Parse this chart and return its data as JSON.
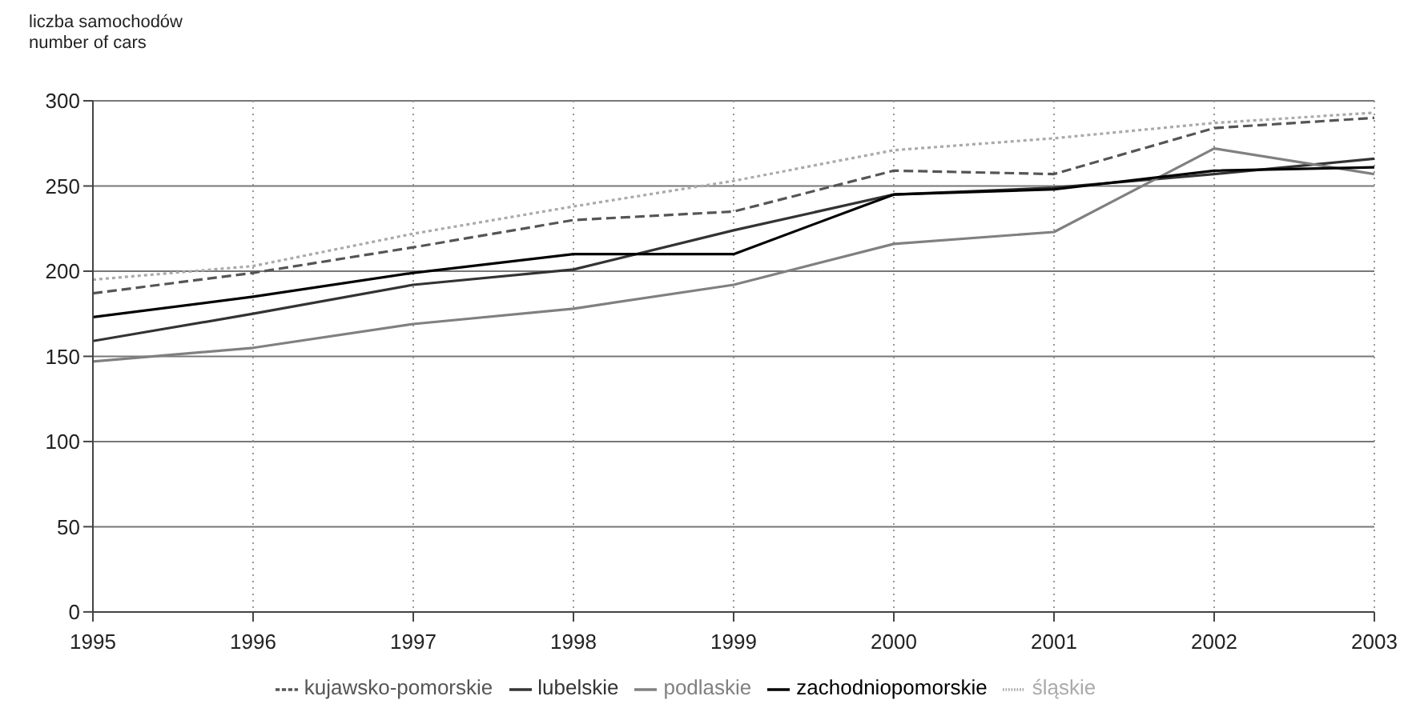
{
  "chart_data": {
    "type": "line",
    "ylabel": "liczba samochodów\nnumber of cars",
    "x": [
      1995,
      1996,
      1997,
      1998,
      1999,
      2000,
      2001,
      2002,
      2003
    ],
    "xlim": [
      1995,
      2003
    ],
    "xticks": [
      1995,
      1996,
      1997,
      1998,
      1999,
      2000,
      2001,
      2002,
      2003
    ],
    "ylim": [
      0,
      300
    ],
    "yticks": [
      0,
      50,
      100,
      150,
      200,
      250,
      300
    ],
    "grid": true,
    "legend": "bottom",
    "marker": "none",
    "series": [
      {
        "name": "kujawsko-pomorskie",
        "color": "#555555",
        "line_style": "dashed",
        "values": [
          187,
          199,
          214,
          230,
          235,
          259,
          257,
          284,
          290
        ]
      },
      {
        "name": "lubelskie",
        "color": "#333333",
        "line_style": "solid",
        "values": [
          159,
          175,
          192,
          201,
          224,
          245,
          249,
          257,
          266
        ]
      },
      {
        "name": "podlaskie",
        "color": "#808080",
        "line_style": "solid",
        "values": [
          147,
          155,
          169,
          178,
          192,
          216,
          223,
          272,
          257
        ]
      },
      {
        "name": "śląskie",
        "color": "#aaaaaa",
        "line_style": "dotted",
        "values": [
          195,
          203,
          222,
          238,
          253,
          271,
          278,
          287,
          293
        ]
      },
      {
        "name": "zachodniopomorskie",
        "color": "#000000",
        "line_style": "solid",
        "values": [
          173,
          185,
          199,
          210,
          210,
          245,
          248,
          259,
          261
        ]
      }
    ]
  }
}
